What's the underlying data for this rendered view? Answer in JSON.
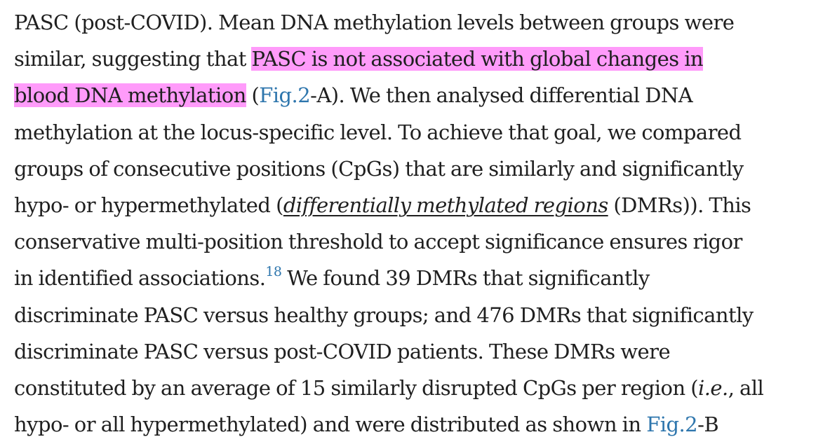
{
  "paragraph": {
    "l1": "PASC (post-COVID). Mean DNA methylation levels between groups were",
    "l2_pre": "similar, suggesting that ",
    "l2_hl": "PASC is not associated with global changes in",
    "l3_hl": "blood DNA methylation",
    "l3_open": " (",
    "l3_fig": "Fig.2",
    "l3_post": "-A). We then analysed differential DNA",
    "l4": "methylation at the locus-specific level. To achieve that goal, we compared",
    "l5": "groups of consecutive positions (CpGs) that are similarly and significantly",
    "l6_pre": "hypo- or hypermethylated (",
    "l6_term": "differentially methylated regions",
    "l6_post": " (DMRs)). This",
    "l7": "conservative multi-position threshold to accept significance ensures rigor",
    "l8_pre": "in identified associations.",
    "l8_ref": "18",
    "l8_post": " We found 39 DMRs that significantly",
    "l9": "discriminate PASC versus healthy groups; and 476 DMRs that significantly",
    "l10": "discriminate PASC versus post-COVID patients. These DMRs were",
    "l11_pre": "constituted by an average of 15 similarly disrupted CpGs per region (",
    "l11_ie": "i.e.",
    "l11_post": ", all",
    "l12_pre": "hypo- or all hypermethylated) and were distributed as shown in ",
    "l12_fig": "Fig.2",
    "l12_post": "-B"
  },
  "colors": {
    "text": "#1f1f1f",
    "link": "#2e76ad",
    "highlight": "#ff9bfa",
    "background": "#ffffff"
  }
}
